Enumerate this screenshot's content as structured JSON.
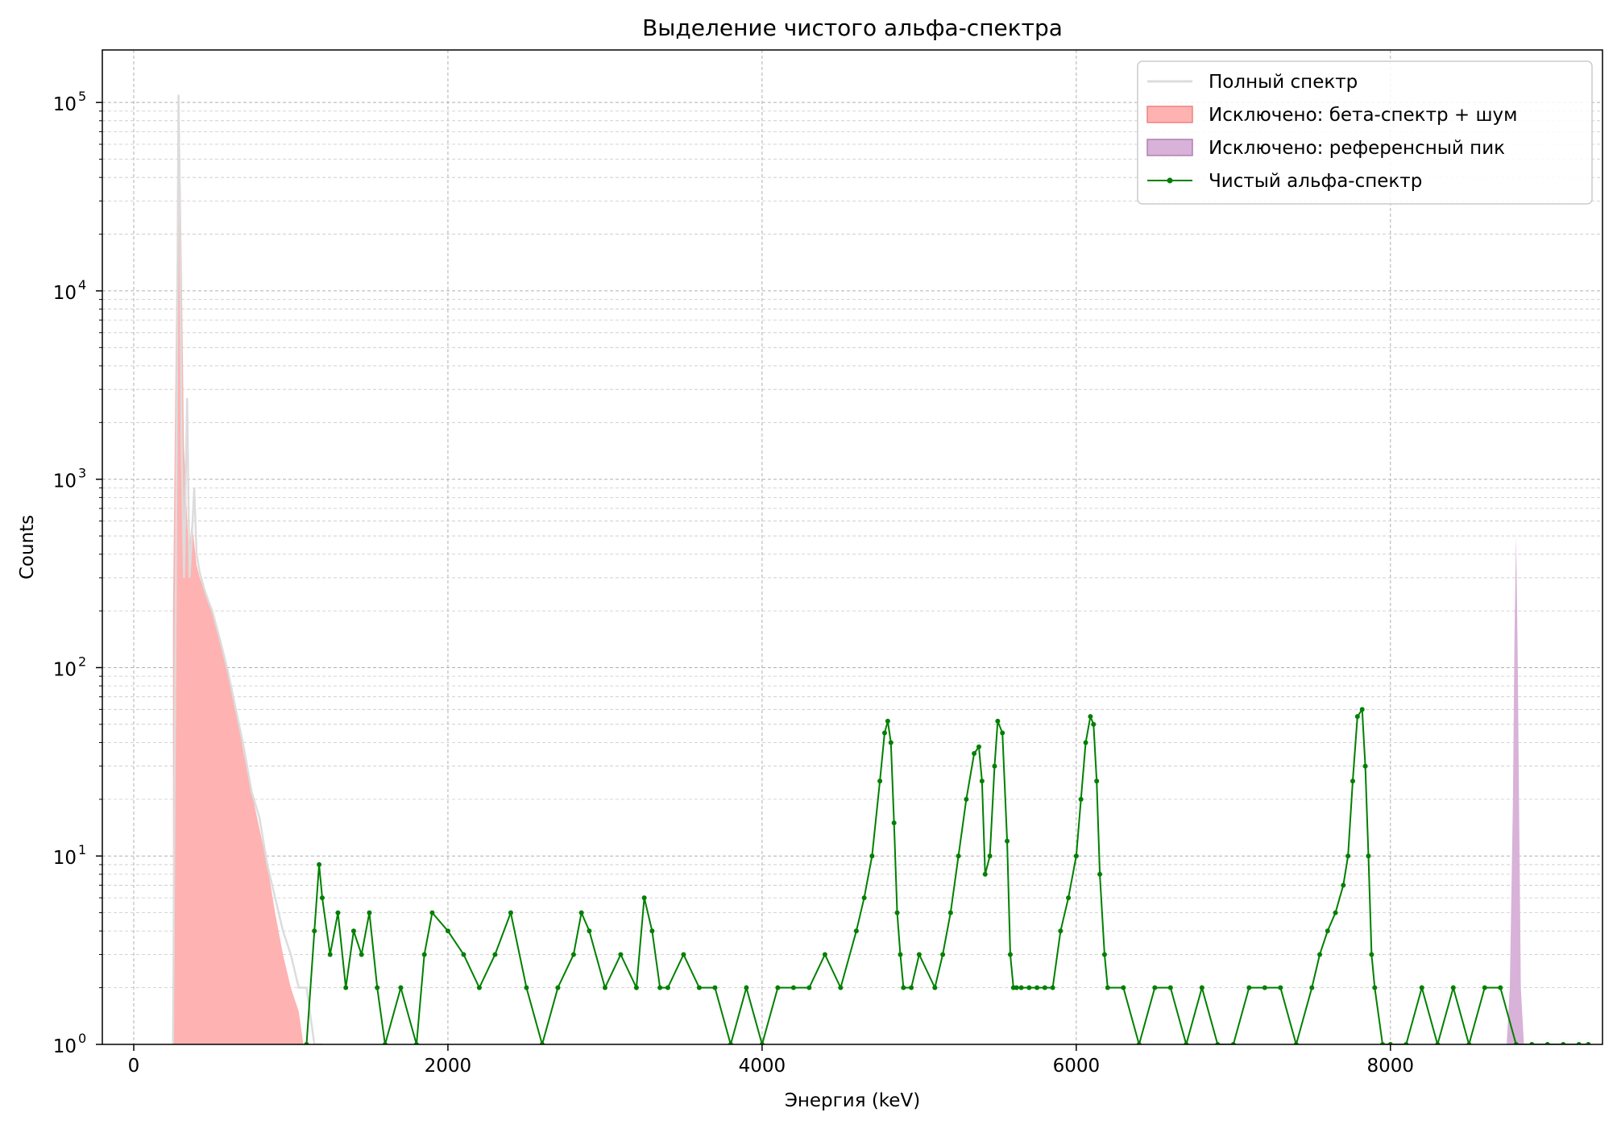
{
  "chart_data": {
    "type": "line",
    "title": "Выделение чистого альфа-спектра",
    "xlabel": "Энергия (keV)",
    "ylabel": "Counts",
    "xlim": [
      -200,
      9350
    ],
    "ylim": [
      1,
      190000
    ],
    "yscale": "log",
    "grid": true,
    "legend_position": "top-right",
    "x_ticks": [
      {
        "value": 0,
        "label": "0"
      },
      {
        "value": 2000,
        "label": "2000"
      },
      {
        "value": 4000,
        "label": "4000"
      },
      {
        "value": 6000,
        "label": "6000"
      },
      {
        "value": 8000,
        "label": "8000"
      }
    ],
    "y_ticks": [
      {
        "value": 1,
        "base": "10",
        "exp": "0"
      },
      {
        "value": 10,
        "base": "10",
        "exp": "1"
      },
      {
        "value": 100,
        "base": "10",
        "exp": "2"
      },
      {
        "value": 1000,
        "base": "10",
        "exp": "3"
      },
      {
        "value": 10000,
        "base": "10",
        "exp": "4"
      },
      {
        "value": 100000,
        "base": "10",
        "exp": "5"
      }
    ],
    "colors": {
      "full_spectrum": "#dcdcdc",
      "beta_fill": "#ffb2b2",
      "beta_edge": "#f08080",
      "ref_fill": "#d8b2d8",
      "ref_edge": "#b080b0",
      "alpha_line": "#008000"
    },
    "legend": [
      {
        "label": "Полный спектр",
        "style": "line",
        "color": "#dcdcdc"
      },
      {
        "label": "Исключено: бета-спектр + шум",
        "style": "patch",
        "color": "#ffb2b2",
        "edge": "#f08080"
      },
      {
        "label": "Исключено: референсный пик",
        "style": "patch",
        "color": "#d8b2d8",
        "edge": "#b080b0"
      },
      {
        "label": "Чистый альфа-спектр",
        "style": "line-marker",
        "color": "#008000"
      }
    ],
    "series": [
      {
        "name": "Исключено: бета-спектр + шум",
        "kind": "area",
        "x": [
          250,
          270,
          290,
          300,
          320,
          350,
          370,
          400,
          420,
          450,
          500,
          550,
          600,
          650,
          700,
          750,
          800,
          850,
          900,
          950,
          1000,
          1050,
          1080
        ],
        "y": [
          200,
          8000,
          110000,
          30000,
          1500,
          400,
          600,
          350,
          300,
          260,
          200,
          140,
          95,
          60,
          35,
          22,
          14,
          9,
          5,
          3,
          2,
          1.5,
          1
        ]
      },
      {
        "name": "Исключено: референсный пик",
        "kind": "area",
        "x": [
          8740,
          8760,
          8780,
          8790,
          8800,
          8810,
          8820,
          8830,
          8850
        ],
        "y": [
          1,
          2,
          20,
          150,
          500,
          120,
          15,
          2,
          1
        ]
      },
      {
        "name": "Полный спектр",
        "kind": "line",
        "x": [
          250,
          270,
          285,
          295,
          305,
          320,
          340,
          355,
          370,
          385,
          400,
          420,
          450,
          480,
          500,
          550,
          600,
          650,
          700,
          750,
          800,
          850,
          900,
          950,
          1000,
          1050,
          1100,
          1150,
          1200
        ],
        "y": [
          1,
          500,
          110000,
          20000,
          1500,
          300,
          2700,
          300,
          500,
          900,
          400,
          320,
          260,
          220,
          200,
          140,
          95,
          60,
          38,
          22,
          16,
          9,
          6,
          4,
          3,
          2,
          2,
          1,
          1
        ]
      },
      {
        "name": "Чистый альфа-спектр",
        "kind": "line-marker",
        "x": [
          1100,
          1150,
          1180,
          1200,
          1250,
          1300,
          1350,
          1400,
          1450,
          1500,
          1550,
          1600,
          1700,
          1800,
          1850,
          1900,
          2000,
          2100,
          2200,
          2300,
          2400,
          2500,
          2600,
          2700,
          2800,
          2850,
          2900,
          3000,
          3100,
          3200,
          3250,
          3300,
          3350,
          3400,
          3500,
          3600,
          3700,
          3800,
          3900,
          4000,
          4100,
          4200,
          4300,
          4400,
          4500,
          4600,
          4650,
          4700,
          4750,
          4780,
          4800,
          4820,
          4840,
          4860,
          4880,
          4900,
          4950,
          5000,
          5100,
          5150,
          5200,
          5250,
          5300,
          5350,
          5380,
          5400,
          5420,
          5450,
          5480,
          5500,
          5530,
          5560,
          5580,
          5600,
          5620,
          5650,
          5700,
          5750,
          5800,
          5850,
          5900,
          5950,
          6000,
          6030,
          6060,
          6090,
          6110,
          6130,
          6150,
          6180,
          6200,
          6300,
          6400,
          6500,
          6600,
          6700,
          6800,
          6900,
          7000,
          7100,
          7200,
          7300,
          7400,
          7500,
          7550,
          7600,
          7650,
          7700,
          7730,
          7760,
          7790,
          7820,
          7840,
          7860,
          7880,
          7900,
          7950,
          8000,
          8100,
          8200,
          8300,
          8400,
          8500,
          8600,
          8700,
          8800,
          8900,
          9000,
          9100,
          9200,
          9260
        ],
        "y": [
          1,
          4,
          9,
          6,
          3,
          5,
          2,
          4,
          3,
          5,
          2,
          1,
          2,
          1,
          3,
          5,
          4,
          3,
          2,
          3,
          5,
          2,
          1,
          2,
          3,
          5,
          4,
          2,
          3,
          2,
          6,
          4,
          2,
          2,
          3,
          2,
          2,
          1,
          2,
          1,
          2,
          2,
          2,
          3,
          2,
          4,
          6,
          10,
          25,
          45,
          52,
          40,
          15,
          5,
          3,
          2,
          2,
          3,
          2,
          3,
          5,
          10,
          20,
          35,
          38,
          25,
          8,
          10,
          30,
          52,
          45,
          12,
          3,
          2,
          2,
          2,
          2,
          2,
          2,
          2,
          4,
          6,
          10,
          20,
          40,
          55,
          50,
          25,
          8,
          3,
          2,
          2,
          1,
          2,
          2,
          1,
          2,
          1,
          1,
          2,
          2,
          2,
          1,
          2,
          3,
          4,
          5,
          7,
          10,
          25,
          55,
          60,
          30,
          10,
          3,
          2,
          1,
          1,
          1,
          2,
          1,
          2,
          1,
          2,
          2,
          1,
          1,
          1,
          1,
          1,
          1
        ]
      }
    ]
  }
}
